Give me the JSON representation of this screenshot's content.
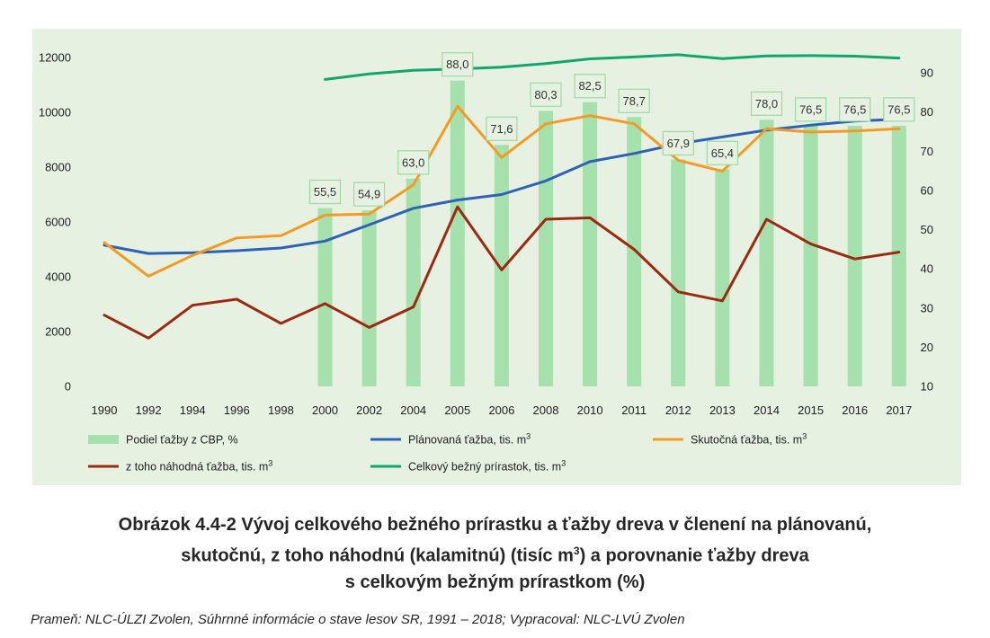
{
  "chart_data": {
    "type": "bar+line",
    "categories": [
      "1990",
      "1992",
      "1994",
      "1996",
      "1998",
      "2000",
      "2002",
      "2004",
      "2005",
      "2006",
      "2008",
      "2010",
      "2011",
      "2012",
      "2013",
      "2014",
      "2015",
      "2016",
      "2017"
    ],
    "left_axis": {
      "ylim": [
        0,
        12000
      ],
      "ticks": [
        "0",
        "2000",
        "4000",
        "6000",
        "8000",
        "10000",
        "12000"
      ]
    },
    "right_axis": {
      "ylim": [
        10,
        95
      ],
      "ticks": [
        "10",
        "20",
        "30",
        "40",
        "50",
        "60",
        "70",
        "80",
        "90"
      ]
    },
    "grid": false,
    "legend_position": "bottom",
    "series": [
      {
        "name": "Podiel ťažby z CBP, %",
        "kind": "bar",
        "axis": "right",
        "color": "#a6e0ac",
        "values": [
          null,
          null,
          null,
          null,
          null,
          55.5,
          54.9,
          63.0,
          88.0,
          71.6,
          80.3,
          82.5,
          78.7,
          67.9,
          65.4,
          78.0,
          76.5,
          76.5,
          76.5
        ],
        "labels": [
          "",
          "",
          "",
          "",
          "",
          "55,5",
          "54,9",
          "63,0",
          "88,0",
          "71,6",
          "80,3",
          "82,5",
          "78,7",
          "67,9",
          "65,4",
          "78,0",
          "76,5",
          "76,5",
          "76,5"
        ]
      },
      {
        "name": "Plánovaná ťažba, tis. m",
        "sup": "3",
        "kind": "line",
        "axis": "left",
        "color": "#2e62b4",
        "values": [
          5150,
          4850,
          4880,
          4950,
          5050,
          5300,
          5900,
          6500,
          6800,
          7000,
          7500,
          8200,
          8500,
          8850,
          9100,
          9350,
          9530,
          9680,
          9750
        ]
      },
      {
        "name": "Skutočná ťažba, tis. m",
        "sup": "3",
        "kind": "line",
        "axis": "left",
        "color": "#f59a23",
        "values": [
          5250,
          4020,
          4780,
          5420,
          5500,
          6250,
          6290,
          7350,
          10220,
          8350,
          9580,
          9880,
          9580,
          8250,
          7850,
          9400,
          9280,
          9320,
          9400
        ]
      },
      {
        "name": "z toho náhodná ťažba, tis. m",
        "sup": "3",
        "kind": "line",
        "axis": "left",
        "color": "#9b2a12",
        "values": [
          2600,
          1760,
          2960,
          3180,
          2300,
          3020,
          2150,
          2900,
          6550,
          4250,
          6100,
          6150,
          5000,
          3450,
          3120,
          6100,
          5200,
          4650,
          4900
        ]
      },
      {
        "name": "Celkový bežný   prírastok, tis. m",
        "sup": "3",
        "kind": "line",
        "axis": "left",
        "color": "#10a66e",
        "values": [
          null,
          null,
          null,
          null,
          null,
          11200,
          11400,
          11530,
          11580,
          11650,
          11780,
          11950,
          12020,
          12100,
          11960,
          12060,
          12070,
          12050,
          11980
        ]
      }
    ]
  },
  "caption": {
    "line1": "Obrázok 4.4-2 Vývoj celkového bežného prírastku a ťažby dreva v členení na plánovanú,",
    "line2_a": "skutočnú, z toho náhodnú (kalamitnú) (tisíc m",
    "line2_sup": "3",
    "line2_b": ") a porovnanie ťažby dreva",
    "line3": "s celkovým bežným prírastkom (%)"
  },
  "source": "Prameň: NLC-ÚLZI Zvolen, Súhrnné informácie o stave lesov SR, 1991 – 2018; Vypracoval: NLC-LVÚ Zvolen"
}
